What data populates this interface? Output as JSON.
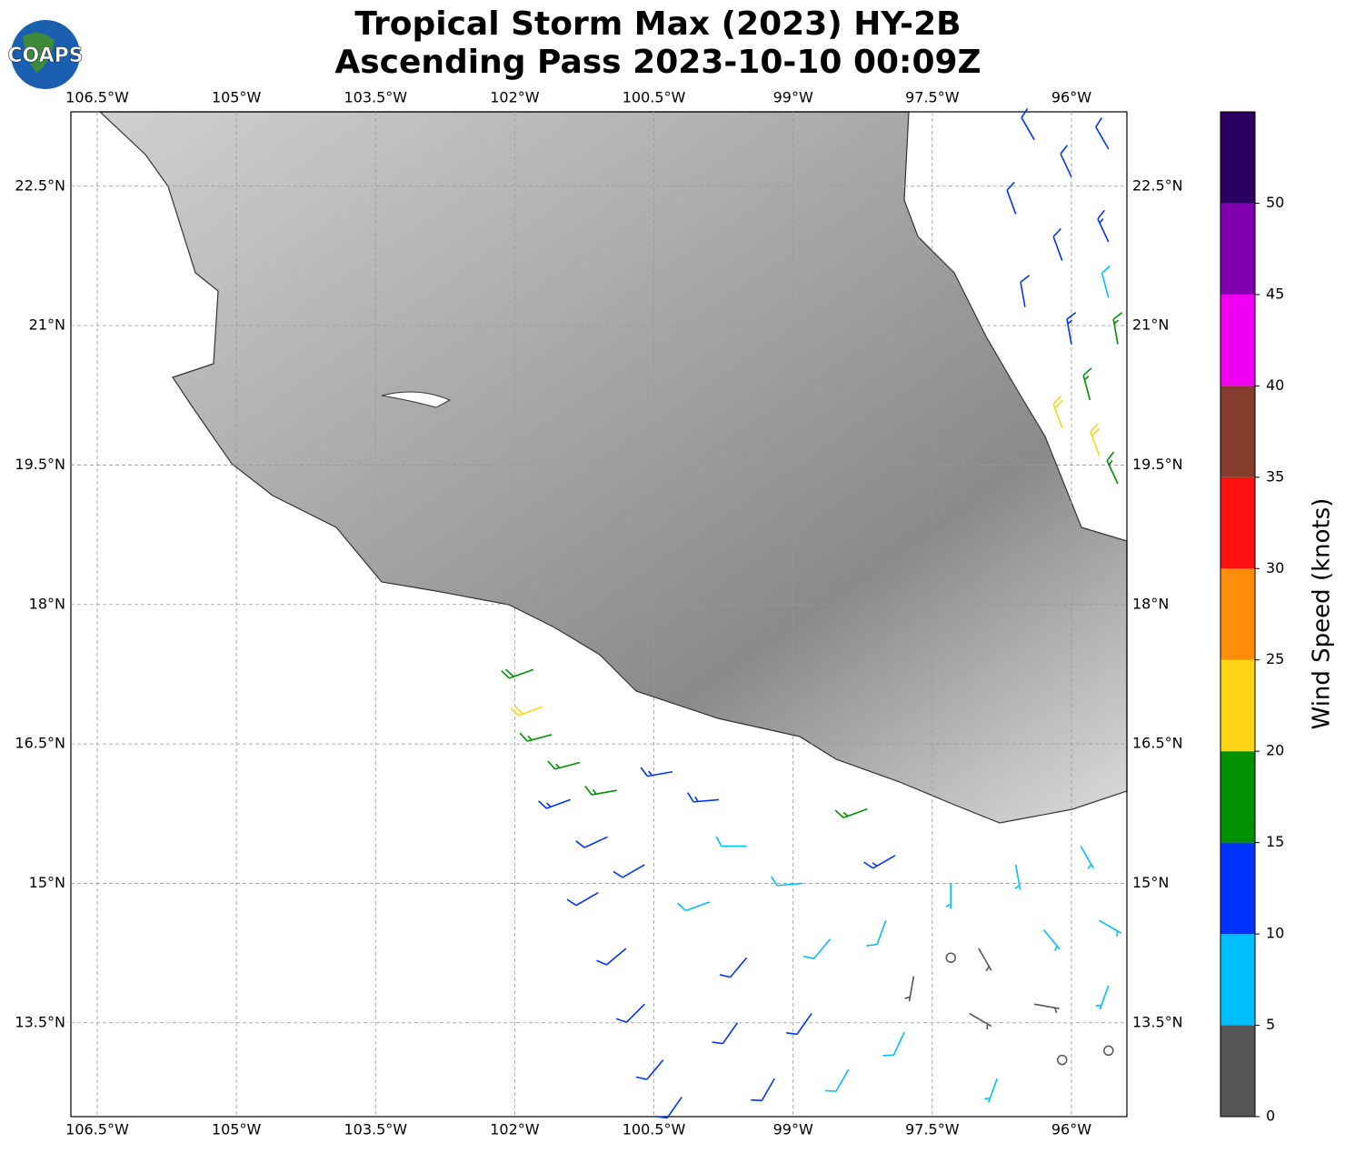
{
  "chart_data": {
    "type": "map",
    "logo_text": "COAPS",
    "title": "Tropical Storm Max (2023) HY-2B",
    "subtitle": "Ascending Pass 2023-10-10 00:09Z",
    "xlim": [
      -106.784,
      -95.402
    ],
    "ylim": [
      12.49,
      23.3
    ],
    "xticks": [
      {
        "value": -106.5,
        "label": "106.5°W"
      },
      {
        "value": -105,
        "label": "105°W"
      },
      {
        "value": -103.5,
        "label": "103.5°W"
      },
      {
        "value": -102,
        "label": "102°W"
      },
      {
        "value": -100.5,
        "label": "100.5°W"
      },
      {
        "value": -99,
        "label": "99°W"
      },
      {
        "value": -97.5,
        "label": "97.5°W"
      },
      {
        "value": -96,
        "label": "96°W"
      }
    ],
    "yticks": [
      {
        "value": 13.5,
        "label": "13.5°N"
      },
      {
        "value": 15,
        "label": "15°N"
      },
      {
        "value": 16.5,
        "label": "16.5°N"
      },
      {
        "value": 18,
        "label": "18°N"
      },
      {
        "value": 19.5,
        "label": "19.5°N"
      },
      {
        "value": 21,
        "label": "21°N"
      },
      {
        "value": 22.5,
        "label": "22.5°N"
      }
    ],
    "grid": true,
    "barbs": {
      "lon": [
        -101.8,
        -101.7,
        -101.6,
        -101.3,
        -100.9,
        -101.4,
        -101.0,
        -100.6,
        -101.1,
        -100.8,
        -100.6,
        -100.4,
        -100.2,
        -100.3,
        -99.8,
        -99.5,
        -99.9,
        -99.5,
        -99.6,
        -99.2,
        -98.9,
        -98.6,
        -98.8,
        -98.4,
        -98.2,
        -97.9,
        -98.0,
        -97.7,
        -97.8,
        -97.3,
        -97.0,
        -97.1,
        -96.8,
        -96.6,
        -96.3,
        -96.4,
        -96.1,
        -95.9,
        -95.7,
        -95.6,
        -95.6,
        -97.3,
        -96.4,
        -96.0,
        -95.6,
        -96.6,
        -96.1,
        -95.6,
        -96.5,
        -96.0,
        -95.6,
        -95.8,
        -96.1,
        -95.7,
        -95.5,
        -95.5
      ],
      "lat": [
        17.3,
        16.9,
        16.6,
        16.3,
        16.0,
        15.9,
        15.5,
        15.2,
        14.9,
        14.3,
        13.7,
        13.1,
        12.7,
        16.2,
        15.9,
        15.4,
        14.8,
        14.2,
        13.5,
        12.9,
        15.0,
        14.4,
        13.6,
        13.0,
        15.8,
        15.3,
        14.6,
        14.0,
        13.4,
        15.0,
        14.3,
        13.6,
        12.9,
        15.2,
        14.5,
        13.7,
        13.1,
        15.4,
        14.6,
        13.9,
        13.2,
        14.2,
        23.0,
        22.6,
        22.9,
        22.2,
        21.7,
        21.9,
        21.2,
        20.8,
        21.3,
        20.2,
        19.9,
        19.6,
        19.3,
        20.8
      ],
      "speed": [
        18,
        22,
        17,
        16,
        17,
        13,
        12,
        11,
        12,
        11,
        12,
        11,
        12,
        14,
        13,
        9,
        8,
        11,
        10,
        11,
        8,
        9,
        10,
        8,
        17,
        14,
        8,
        4,
        8,
        7,
        3,
        3,
        6,
        6,
        7,
        3,
        2,
        7,
        6,
        6,
        1,
        1,
        12,
        11,
        12,
        11,
        12,
        13,
        12,
        14,
        8,
        17,
        22,
        21,
        17,
        16
      ],
      "direction": [
        250,
        250,
        255,
        255,
        260,
        250,
        245,
        240,
        240,
        230,
        225,
        220,
        215,
        260,
        265,
        270,
        250,
        220,
        215,
        210,
        265,
        220,
        215,
        210,
        250,
        240,
        200,
        190,
        205,
        180,
        150,
        120,
        200,
        170,
        140,
        100,
        0,
        150,
        120,
        200,
        0,
        0,
        330,
        335,
        330,
        340,
        340,
        335,
        350,
        350,
        345,
        345,
        340,
        340,
        335,
        350
      ]
    },
    "colorbar": {
      "bounds": [
        0,
        5,
        10,
        15,
        20,
        25,
        30,
        35,
        40,
        45,
        50,
        55
      ],
      "colors": [
        "#555555",
        "#00bfff",
        "#0033ff",
        "#009000",
        "#fdd516",
        "#ff8c0a",
        "#ff1010",
        "#843c2c",
        "#f000f0",
        "#8000b0",
        "#2a0060"
      ],
      "ticks": [
        0,
        5,
        10,
        15,
        20,
        25,
        30,
        35,
        40,
        45,
        50
      ],
      "label": "Wind Speed (knots)"
    }
  }
}
